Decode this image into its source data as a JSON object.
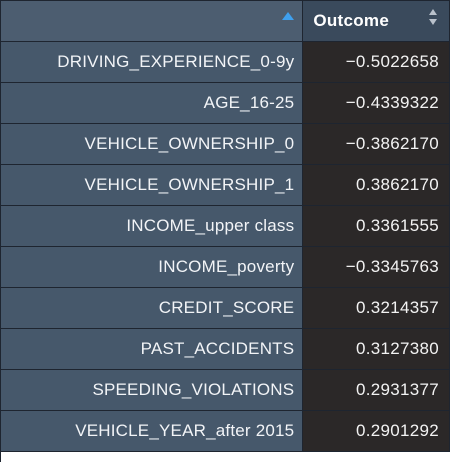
{
  "table": {
    "header": {
      "column_label": "Outcome"
    },
    "rows": [
      {
        "name": "DRIVING_EXPERIENCE_0-9y",
        "value": "−0.5022658"
      },
      {
        "name": "AGE_16-25",
        "value": "−0.4339322"
      },
      {
        "name": "VEHICLE_OWNERSHIP_0",
        "value": "−0.3862170"
      },
      {
        "name": "VEHICLE_OWNERSHIP_1",
        "value": "0.3862170"
      },
      {
        "name": "INCOME_upper class",
        "value": "0.3361555"
      },
      {
        "name": "INCOME_poverty",
        "value": "−0.3345763"
      },
      {
        "name": "CREDIT_SCORE",
        "value": "0.3214357"
      },
      {
        "name": "PAST_ACCIDENTS",
        "value": "0.3127380"
      },
      {
        "name": "SPEEDING_VIOLATIONS",
        "value": "0.2931377"
      },
      {
        "name": "VEHICLE_YEAR_after 2015",
        "value": "0.2901292"
      }
    ],
    "icons": {
      "rowname_sort": "sort-ascending-icon",
      "column_sort": "sort-both-icon"
    },
    "colors": {
      "rowname_bg": "#46586b",
      "value_bg": "#2b2828",
      "header_bg": "#3a4a5c",
      "sort_active": "#3fa0ee"
    }
  }
}
